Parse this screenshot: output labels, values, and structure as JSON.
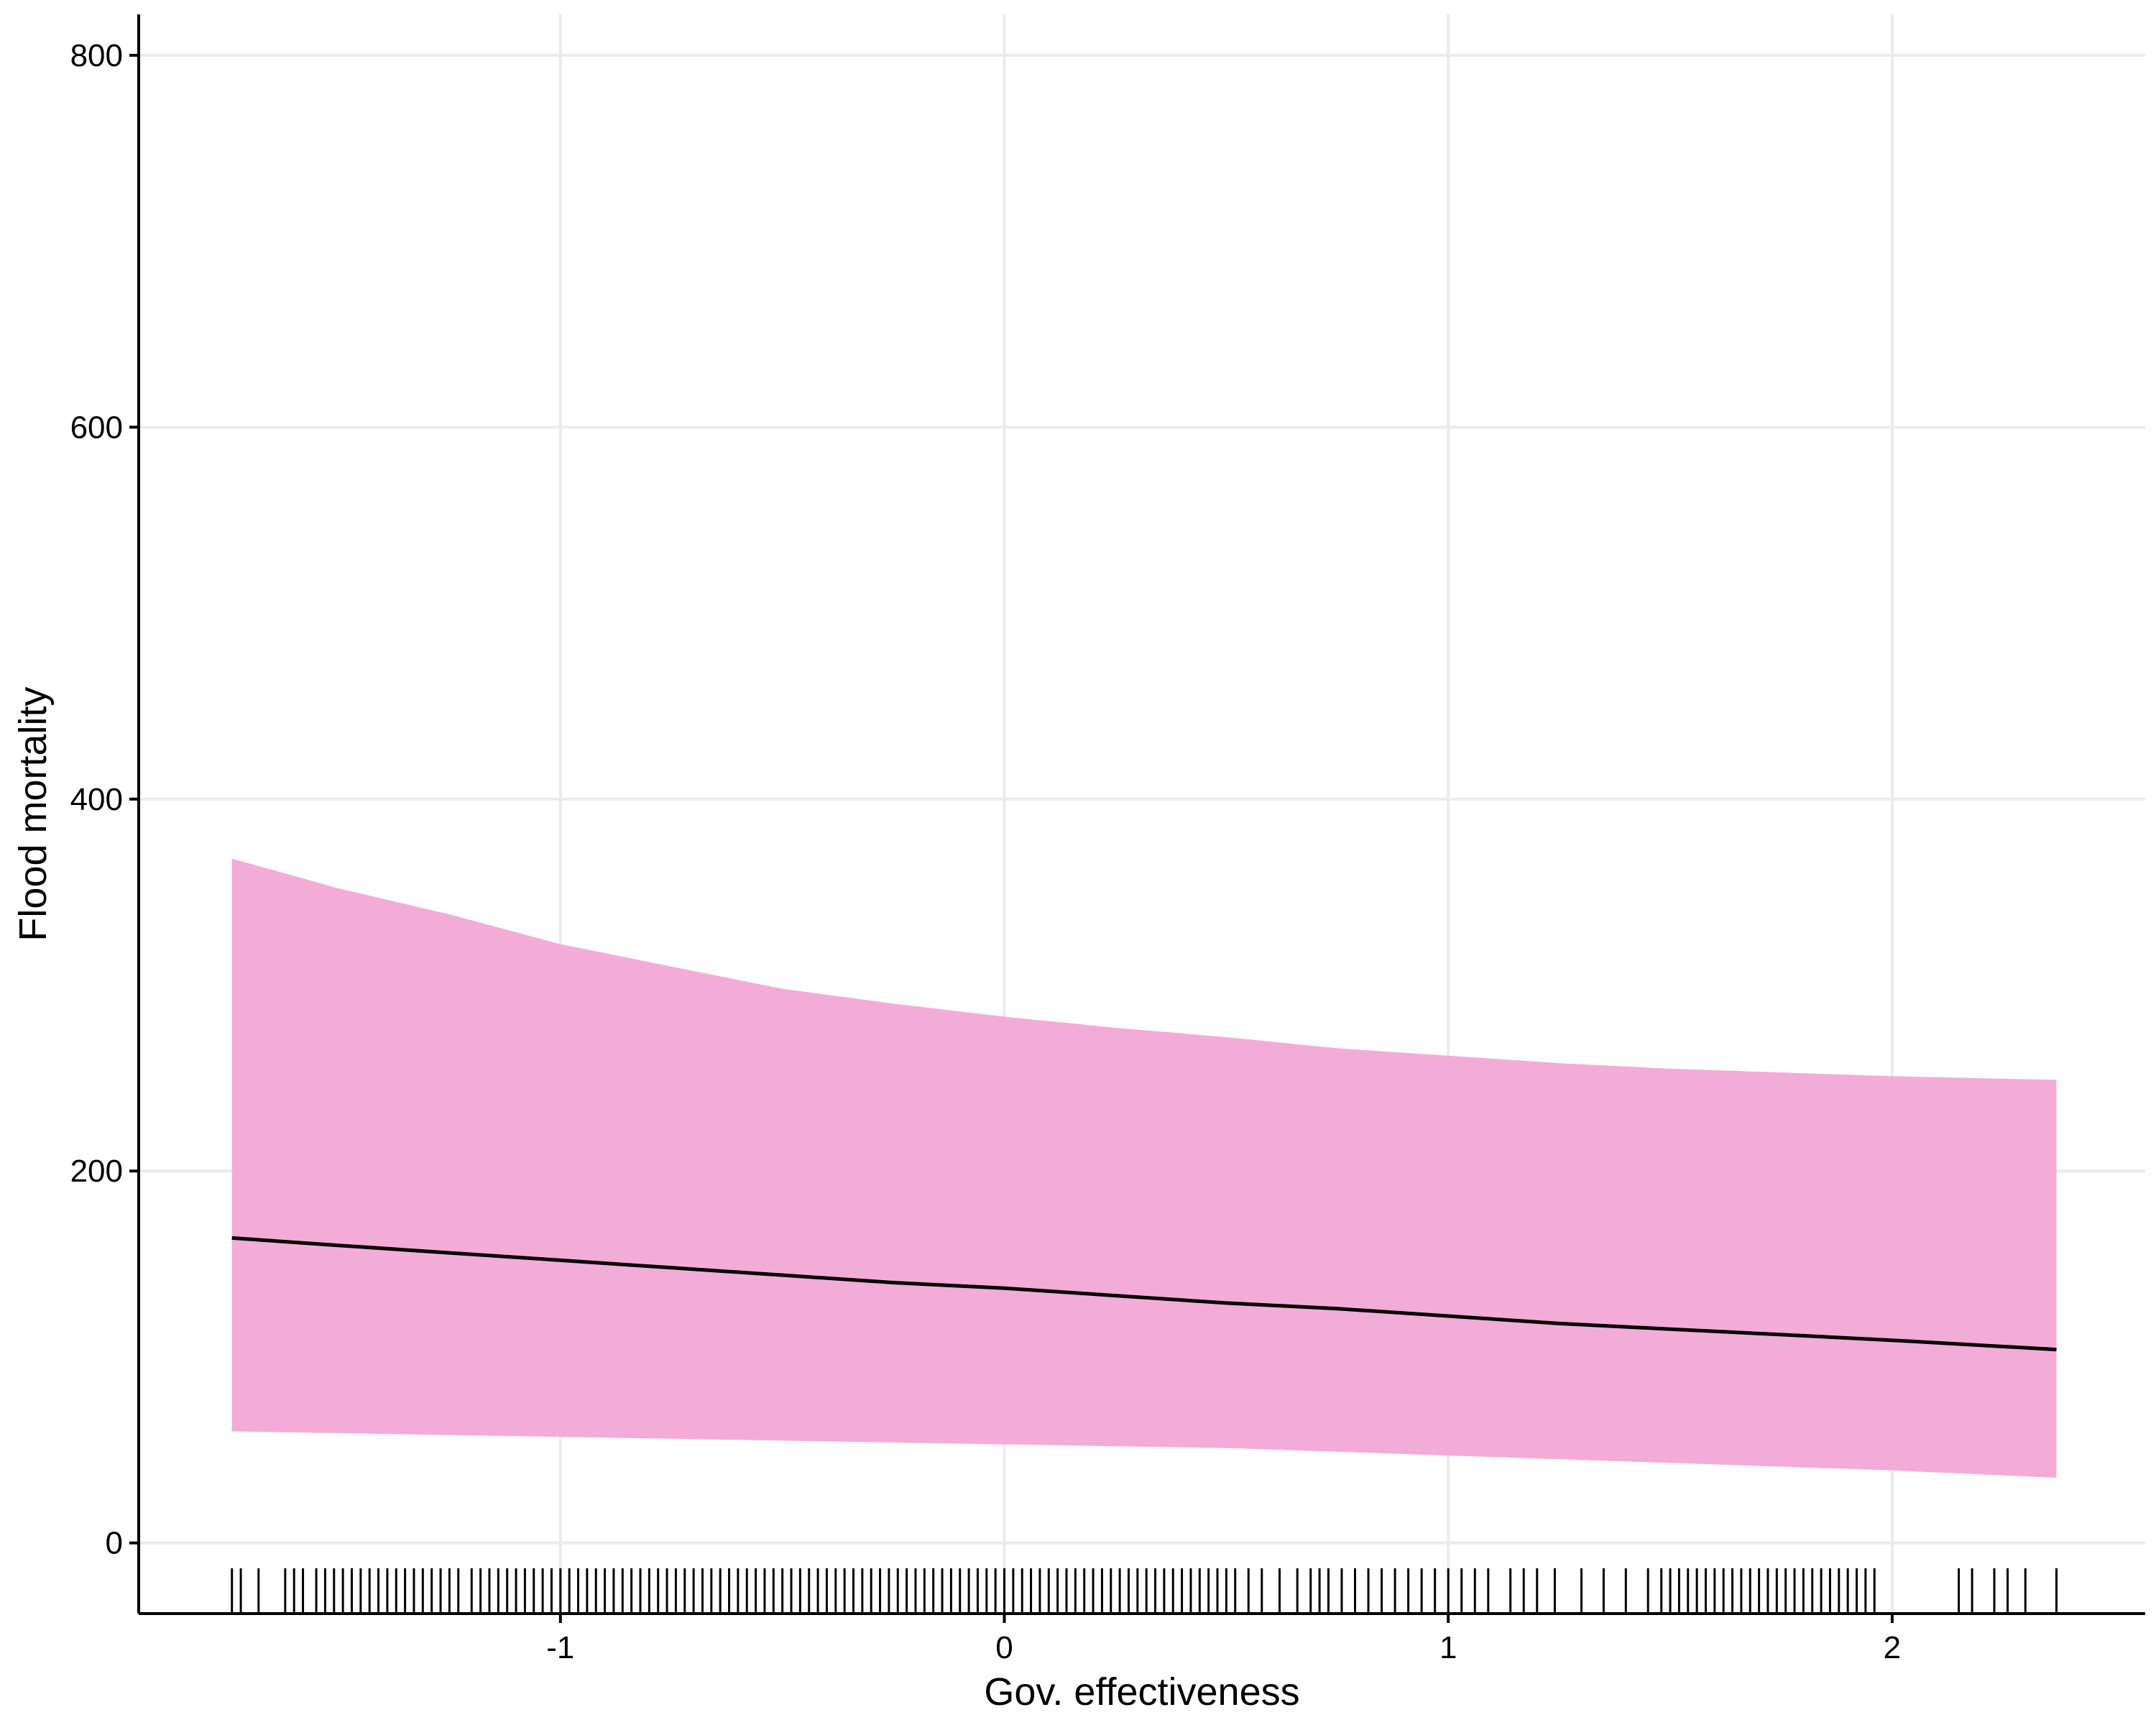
{
  "chart_data": {
    "type": "line",
    "title": "",
    "xlabel": "Gov. effectiveness",
    "ylabel": "Flood mortality",
    "xlim": [
      -1.95,
      2.57
    ],
    "ylim": [
      -38,
      822
    ],
    "x_ticks": [
      -1,
      0,
      1,
      2
    ],
    "y_ticks": [
      0,
      200,
      400,
      600,
      800
    ],
    "x_tick_labels": [
      "-1",
      "0",
      "1",
      "2"
    ],
    "y_tick_labels": [
      "0",
      "200",
      "400",
      "600",
      "800"
    ],
    "grid": true,
    "legend": "none",
    "band_color": "#f3acd7",
    "line_color": "#000000",
    "series": [
      {
        "x": [
          -1.74,
          -1.5,
          -1.25,
          -1.0,
          -0.75,
          -0.5,
          -0.25,
          0.0,
          0.25,
          0.5,
          0.75,
          1.0,
          1.25,
          1.5,
          1.75,
          2.0,
          2.37
        ],
        "fit": [
          164,
          160,
          156,
          152,
          148,
          144,
          140,
          137,
          133,
          129,
          126,
          122,
          118,
          115,
          112,
          109,
          104
        ],
        "lower": [
          60,
          59,
          58,
          57,
          56,
          55,
          54,
          53,
          52,
          51,
          49,
          47,
          45,
          43,
          41,
          39,
          35
        ],
        "upper": [
          368,
          352,
          338,
          322,
          310,
          298,
          290,
          283,
          277,
          272,
          266,
          262,
          258,
          255,
          253,
          251,
          249
        ]
      }
    ],
    "rug": [
      -1.74,
      -1.72,
      -1.68,
      -1.62,
      -1.6,
      -1.58,
      -1.55,
      -1.53,
      -1.51,
      -1.49,
      -1.47,
      -1.45,
      -1.43,
      -1.41,
      -1.39,
      -1.37,
      -1.35,
      -1.33,
      -1.31,
      -1.29,
      -1.27,
      -1.25,
      -1.23,
      -1.2,
      -1.18,
      -1.16,
      -1.14,
      -1.12,
      -1.1,
      -1.08,
      -1.06,
      -1.04,
      -1.02,
      -1.0,
      -0.98,
      -0.96,
      -0.94,
      -0.92,
      -0.9,
      -0.88,
      -0.86,
      -0.84,
      -0.82,
      -0.8,
      -0.78,
      -0.76,
      -0.74,
      -0.72,
      -0.7,
      -0.68,
      -0.66,
      -0.64,
      -0.62,
      -0.6,
      -0.58,
      -0.56,
      -0.54,
      -0.52,
      -0.5,
      -0.48,
      -0.46,
      -0.44,
      -0.42,
      -0.4,
      -0.38,
      -0.36,
      -0.34,
      -0.32,
      -0.3,
      -0.28,
      -0.26,
      -0.24,
      -0.22,
      -0.2,
      -0.18,
      -0.16,
      -0.14,
      -0.12,
      -0.1,
      -0.08,
      -0.06,
      -0.04,
      -0.02,
      0.0,
      0.02,
      0.04,
      0.06,
      0.08,
      0.1,
      0.12,
      0.14,
      0.16,
      0.18,
      0.2,
      0.22,
      0.24,
      0.26,
      0.28,
      0.3,
      0.32,
      0.34,
      0.36,
      0.38,
      0.4,
      0.42,
      0.44,
      0.46,
      0.48,
      0.5,
      0.52,
      0.55,
      0.58,
      0.62,
      0.66,
      0.69,
      0.71,
      0.73,
      0.76,
      0.79,
      0.82,
      0.85,
      0.88,
      0.91,
      0.94,
      0.97,
      1.0,
      1.03,
      1.06,
      1.09,
      1.14,
      1.17,
      1.2,
      1.24,
      1.3,
      1.35,
      1.4,
      1.45,
      1.48,
      1.5,
      1.52,
      1.54,
      1.56,
      1.58,
      1.6,
      1.62,
      1.64,
      1.66,
      1.68,
      1.7,
      1.72,
      1.74,
      1.76,
      1.78,
      1.8,
      1.82,
      1.84,
      1.86,
      1.88,
      1.9,
      1.92,
      1.94,
      1.96,
      2.15,
      2.18,
      2.23,
      2.26,
      2.3,
      2.37
    ]
  }
}
